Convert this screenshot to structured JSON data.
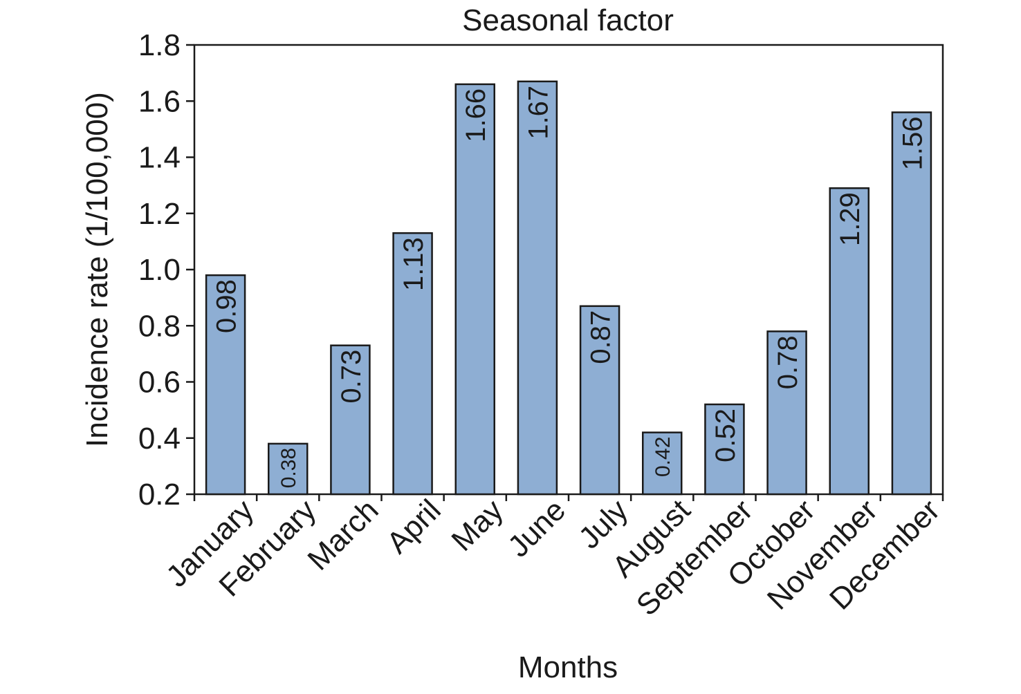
{
  "chart_data": {
    "type": "bar",
    "title": "Seasonal factor",
    "xlabel": "Months",
    "ylabel": "Incidence rate (1/100,000)",
    "categories": [
      "January",
      "February",
      "March",
      "April",
      "May",
      "June",
      "July",
      "August",
      "September",
      "October",
      "November",
      "December"
    ],
    "values": [
      0.98,
      0.38,
      0.73,
      1.13,
      1.66,
      1.67,
      0.87,
      0.42,
      0.52,
      0.78,
      1.29,
      1.56
    ],
    "data_labels": [
      "0.98",
      "0.38",
      "0.73",
      "1.13",
      "1.66",
      "1.67",
      "0.87",
      "0.42",
      "0.52",
      "0.78",
      "1.29",
      "1.56"
    ],
    "ylim": [
      0.2,
      1.8
    ],
    "yticks": [
      0.2,
      0.4,
      0.6,
      0.8,
      1.0,
      1.2,
      1.4,
      1.6,
      1.8
    ],
    "ytick_labels": [
      "0.2",
      "0.4",
      "0.6",
      "0.8",
      "1.0",
      "1.2",
      "1.4",
      "1.6",
      "1.8"
    ],
    "grid": false,
    "legend": "none",
    "colors": {
      "bar_fill": "#8eaed3",
      "bar_stroke": "#1a1a1a",
      "axis": "#1a1a1a",
      "text": "#1a1a1a"
    }
  }
}
